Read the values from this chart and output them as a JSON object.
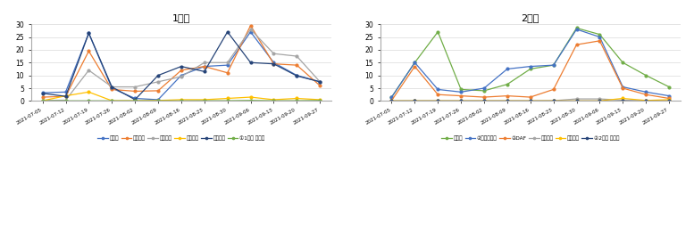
{
  "title1": "1계열",
  "title2": "2계열",
  "x_labels1": [
    "2021-07-05",
    "2021-07-12",
    "2021-07-19",
    "2021-07-26",
    "2021-08-02",
    "2021-08-09",
    "2021-08-16",
    "2021-08-23",
    "2021-08-30",
    "2021-09-06",
    "2021-09-13",
    "2021-09-20",
    "2021-09-27"
  ],
  "x_labels2": [
    "2021-07-05",
    "2021-07-12",
    "2021-07-19",
    "2021-07-26",
    "2021-08-02",
    "2021-08-09",
    "2021-08-16",
    "2021-08-23",
    "2021-08-30",
    "2021-09-06",
    "2021-09-13",
    "2021-09-20",
    "2021-09-27"
  ],
  "series1": [
    {
      "label": "응집수",
      "color": "#4472C4",
      "data": [
        3.2,
        3.5,
        26.5,
        5.0,
        1.0,
        0.5,
        10.0,
        13.5,
        14.0,
        27.0,
        15.0,
        10.0,
        7.5
      ]
    },
    {
      "label": "응직수격",
      "color": "#ED7D31",
      "data": [
        1.5,
        1.8,
        19.5,
        4.5,
        3.8,
        4.0,
        12.0,
        13.5,
        11.0,
        29.5,
        14.5,
        14.0,
        6.0
      ]
    },
    {
      "label": "응출침조",
      "color": "#A5A5A5",
      "data": [
        0.2,
        0.3,
        12.0,
        5.5,
        5.5,
        7.5,
        9.5,
        15.0,
        15.0,
        28.0,
        18.5,
        17.5,
        7.5
      ]
    },
    {
      "label": "응집전조",
      "color": "#FFC000",
      "data": [
        0.1,
        2.0,
        3.5,
        0.1,
        0.1,
        0.2,
        0.5,
        0.5,
        1.0,
        1.5,
        0.5,
        1.0,
        0.5
      ]
    },
    {
      "label": "응대과조",
      "color": "#264478",
      "data": [
        3.0,
        1.8,
        26.5,
        5.5,
        0.5,
        10.0,
        13.5,
        11.5,
        27.0,
        15.0,
        14.5,
        9.8,
        7.5
      ]
    },
    {
      "label": "①1계열 유출수",
      "color": "#70AD47",
      "data": [
        0.05,
        0.05,
        0.05,
        0.05,
        0.05,
        0.05,
        0.05,
        0.1,
        0.1,
        0.2,
        0.1,
        0.1,
        0.2
      ]
    }
  ],
  "series2": [
    {
      "label": "응집수",
      "color": "#70AD47",
      "data": [
        1.5,
        15.0,
        27.0,
        4.5,
        4.0,
        6.5,
        12.5,
        14.0,
        28.5,
        26.0,
        15.0,
        10.0,
        5.5
      ]
    },
    {
      "label": "②예비질전지",
      "color": "#4472C4",
      "data": [
        1.5,
        15.0,
        4.5,
        3.5,
        5.0,
        12.5,
        13.5,
        14.0,
        28.0,
        25.0,
        5.5,
        3.5,
        2.0
      ]
    },
    {
      "label": "②DAF",
      "color": "#ED7D31",
      "data": [
        0.2,
        13.5,
        2.5,
        2.0,
        1.5,
        2.0,
        1.5,
        4.5,
        22.0,
        23.5,
        5.0,
        2.5,
        1.0
      ]
    },
    {
      "label": "응질지식",
      "color": "#A5A5A5",
      "data": [
        0.05,
        0.05,
        0.05,
        0.05,
        0.05,
        0.05,
        0.05,
        0.1,
        0.8,
        0.8,
        0.3,
        0.05,
        0.05
      ]
    },
    {
      "label": "유가압식",
      "color": "#FFC000",
      "data": [
        0.05,
        0.05,
        0.05,
        0.05,
        0.05,
        0.05,
        0.05,
        0.05,
        0.05,
        0.05,
        1.0,
        0.2,
        0.5
      ]
    },
    {
      "label": "②2계열 유출수",
      "color": "#264478",
      "data": [
        0.05,
        0.05,
        0.05,
        0.05,
        0.05,
        0.05,
        0.05,
        0.05,
        0.05,
        0.05,
        0.05,
        0.05,
        0.05
      ]
    }
  ],
  "ylim": [
    0,
    30
  ],
  "yticks": [
    0,
    5,
    10,
    15,
    20,
    25,
    30
  ],
  "bg_color": "#FFFFFF",
  "grid_color": "#D9D9D9"
}
